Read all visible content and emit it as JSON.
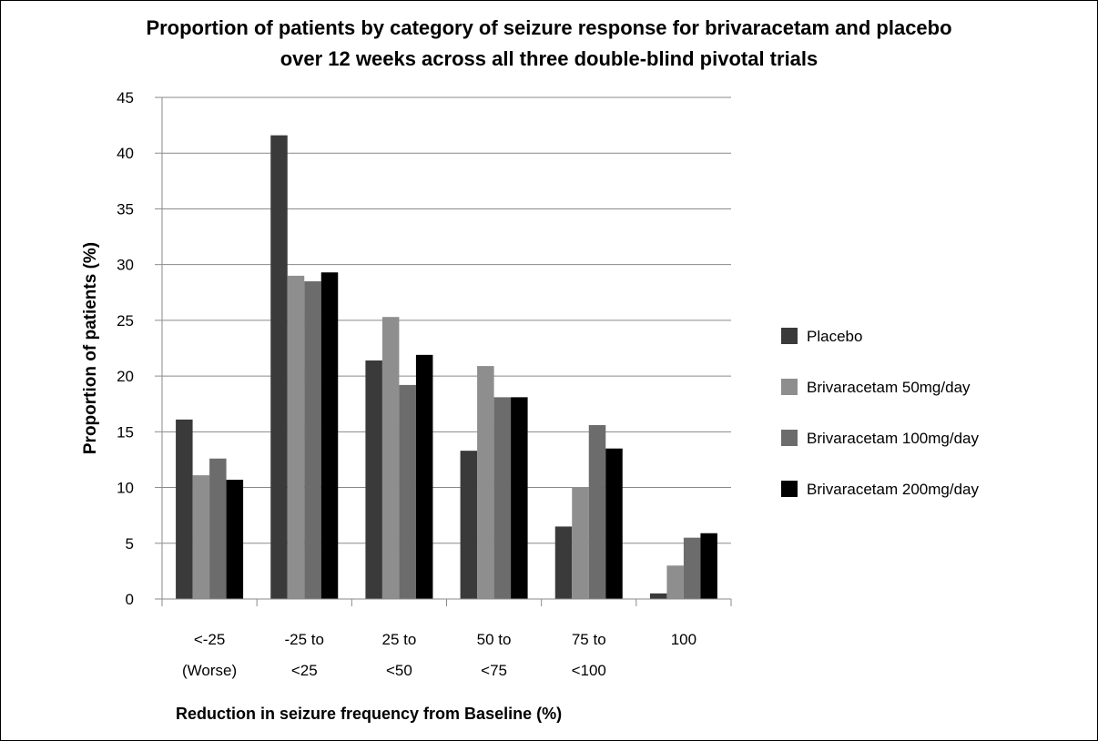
{
  "chart_data": {
    "type": "bar",
    "title_line1": "Proportion of patients by category of seizure response for brivaracetam and placebo",
    "title_line2": "over 12 weeks across all three double-blind pivotal trials",
    "xlabel": "Reduction in seizure frequency from Baseline (%)",
    "ylabel": "Proportion of patients (%)",
    "ylim": [
      0,
      45
    ],
    "yticks": [
      0,
      5,
      10,
      15,
      20,
      25,
      30,
      35,
      40,
      45
    ],
    "grid": true,
    "legend_position": "right",
    "categories": [
      [
        "<-25",
        "(Worse)"
      ],
      [
        "-25 to",
        "<25"
      ],
      [
        "25 to",
        "<50"
      ],
      [
        "50 to",
        "<75"
      ],
      [
        "75 to",
        "<100"
      ],
      [
        "100"
      ]
    ],
    "series": [
      {
        "name": "Placebo",
        "color": "#3a3a3a",
        "values": [
          16.1,
          41.6,
          21.4,
          13.3,
          6.5,
          0.5
        ]
      },
      {
        "name": "Brivaracetam 50mg/day",
        "color": "#8e8e8e",
        "values": [
          11.1,
          29.0,
          25.3,
          20.9,
          10.0,
          3.0
        ]
      },
      {
        "name": "Brivaracetam 100mg/day",
        "color": "#6c6c6c",
        "values": [
          12.6,
          28.5,
          19.2,
          18.1,
          15.6,
          5.5
        ]
      },
      {
        "name": "Brivaracetam 200mg/day",
        "color": "#000000",
        "values": [
          10.7,
          29.3,
          21.9,
          18.1,
          13.5,
          5.9
        ]
      }
    ]
  }
}
